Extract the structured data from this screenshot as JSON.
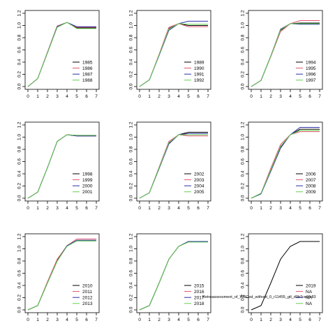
{
  "figure": {
    "overlay_text": "Retroassessment_of_WBCod_without_0_r11455_gtl_d0b7ce1fb83"
  },
  "series_colors": [
    "#000000",
    "#df536b",
    "#2e2ea8",
    "#61d04f"
  ],
  "chart_data": [
    {
      "type": "line",
      "x": [
        0,
        1,
        2,
        3,
        4,
        5,
        6,
        7
      ],
      "xlim": [
        0,
        7
      ],
      "ylim": [
        0,
        1.2
      ],
      "xticks": [
        "0",
        "1",
        "2",
        "3",
        "4",
        "5",
        "6",
        "7"
      ],
      "yticks": [
        "0.0",
        "0.2",
        "0.4",
        "0.6",
        "0.8",
        "1.0",
        "1.2"
      ],
      "grid": false,
      "legend_position": "bottom-right",
      "series": [
        {
          "name": "1985",
          "values": [
            0,
            0.13,
            0.56,
            0.99,
            1.05,
            0.96,
            0.96,
            0.96
          ]
        },
        {
          "name": "1986",
          "values": [
            0,
            0.13,
            0.56,
            0.99,
            1.05,
            0.97,
            0.97,
            0.97
          ]
        },
        {
          "name": "1987",
          "values": [
            0,
            0.13,
            0.55,
            0.98,
            1.05,
            0.98,
            0.98,
            0.98
          ]
        },
        {
          "name": "1988",
          "values": [
            0,
            0.13,
            0.55,
            0.97,
            1.05,
            0.95,
            0.95,
            0.95
          ]
        }
      ]
    },
    {
      "type": "line",
      "x": [
        0,
        1,
        2,
        3,
        4,
        5,
        6,
        7
      ],
      "xlim": [
        0,
        7
      ],
      "ylim": [
        0,
        1.2
      ],
      "xticks": [
        "0",
        "1",
        "2",
        "3",
        "4",
        "5",
        "6",
        "7"
      ],
      "yticks": [
        "0.0",
        "0.2",
        "0.4",
        "0.6",
        "0.8",
        "1.0",
        "1.2"
      ],
      "grid": false,
      "legend_position": "bottom-right",
      "series": [
        {
          "name": "1989",
          "values": [
            0,
            0.11,
            0.52,
            0.95,
            1.03,
            1.0,
            1.0,
            1.0
          ]
        },
        {
          "name": "1990",
          "values": [
            0,
            0.11,
            0.53,
            0.97,
            1.03,
            0.98,
            0.98,
            0.98
          ]
        },
        {
          "name": "1991",
          "values": [
            0,
            0.11,
            0.51,
            0.92,
            1.03,
            1.07,
            1.07,
            1.07
          ]
        },
        {
          "name": "1992",
          "values": [
            0,
            0.11,
            0.52,
            0.94,
            1.03,
            1.02,
            1.02,
            1.02
          ]
        }
      ]
    },
    {
      "type": "line",
      "x": [
        0,
        1,
        2,
        3,
        4,
        5,
        6,
        7
      ],
      "xlim": [
        0,
        7
      ],
      "ylim": [
        0,
        1.2
      ],
      "xticks": [
        "0",
        "1",
        "2",
        "3",
        "4",
        "5",
        "6",
        "7"
      ],
      "yticks": [
        "0.0",
        "0.2",
        "0.4",
        "0.6",
        "0.8",
        "1.0",
        "1.2"
      ],
      "grid": false,
      "legend_position": "bottom-right",
      "series": [
        {
          "name": "1994",
          "values": [
            0,
            0.1,
            0.5,
            0.92,
            1.03,
            1.04,
            1.04,
            1.04
          ]
        },
        {
          "name": "1995",
          "values": [
            0,
            0.1,
            0.49,
            0.9,
            1.03,
            1.08,
            1.08,
            1.08
          ]
        },
        {
          "name": "1996",
          "values": [
            0,
            0.1,
            0.5,
            0.94,
            1.03,
            1.02,
            1.02,
            1.02
          ]
        },
        {
          "name": "1997",
          "values": [
            0,
            0.1,
            0.5,
            0.93,
            1.03,
            1.03,
            1.03,
            1.03
          ]
        }
      ]
    },
    {
      "type": "line",
      "x": [
        0,
        1,
        2,
        3,
        4,
        5,
        6,
        7
      ],
      "xlim": [
        0,
        7
      ],
      "ylim": [
        0,
        1.2
      ],
      "xticks": [
        "0",
        "1",
        "2",
        "3",
        "4",
        "5",
        "6",
        "7"
      ],
      "yticks": [
        "0.0",
        "0.2",
        "0.4",
        "0.6",
        "0.8",
        "1.0",
        "1.2"
      ],
      "grid": false,
      "legend_position": "bottom-right",
      "series": [
        {
          "name": "1998",
          "values": [
            0,
            0.1,
            0.5,
            0.93,
            1.04,
            1.02,
            1.02,
            1.02
          ]
        },
        {
          "name": "1999",
          "values": [
            0,
            0.1,
            0.5,
            0.93,
            1.04,
            1.03,
            1.03,
            1.03
          ]
        },
        {
          "name": "2000",
          "values": [
            0,
            0.1,
            0.5,
            0.93,
            1.04,
            1.02,
            1.02,
            1.02
          ]
        },
        {
          "name": "2001",
          "values": [
            0,
            0.1,
            0.5,
            0.93,
            1.04,
            1.03,
            1.03,
            1.03
          ]
        }
      ]
    },
    {
      "type": "line",
      "x": [
        0,
        1,
        2,
        3,
        4,
        5,
        6,
        7
      ],
      "xlim": [
        0,
        7
      ],
      "ylim": [
        0,
        1.2
      ],
      "xticks": [
        "0",
        "1",
        "2",
        "3",
        "4",
        "5",
        "6",
        "7"
      ],
      "yticks": [
        "0.0",
        "0.2",
        "0.4",
        "0.6",
        "0.8",
        "1.0",
        "1.2"
      ],
      "grid": false,
      "legend_position": "bottom-right",
      "series": [
        {
          "name": "2002",
          "values": [
            0,
            0.09,
            0.49,
            0.9,
            1.04,
            1.08,
            1.08,
            1.08
          ]
        },
        {
          "name": "2003",
          "values": [
            0,
            0.09,
            0.51,
            0.93,
            1.04,
            1.02,
            1.02,
            1.02
          ]
        },
        {
          "name": "2004",
          "values": [
            0,
            0.09,
            0.49,
            0.89,
            1.04,
            1.06,
            1.06,
            1.06
          ]
        },
        {
          "name": "2005",
          "values": [
            0,
            0.09,
            0.5,
            0.91,
            1.04,
            1.04,
            1.04,
            1.04
          ]
        }
      ]
    },
    {
      "type": "line",
      "x": [
        0,
        1,
        2,
        3,
        4,
        5,
        6,
        7
      ],
      "xlim": [
        0,
        7
      ],
      "ylim": [
        0,
        1.2
      ],
      "xticks": [
        "0",
        "1",
        "2",
        "3",
        "4",
        "5",
        "6",
        "7"
      ],
      "yticks": [
        "0.0",
        "0.2",
        "0.4",
        "0.6",
        "0.8",
        "1.0",
        "1.2"
      ],
      "grid": false,
      "legend_position": "bottom-right",
      "series": [
        {
          "name": "2006",
          "values": [
            0,
            0.08,
            0.46,
            0.84,
            1.04,
            1.13,
            1.13,
            1.13
          ]
        },
        {
          "name": "2007",
          "values": [
            0,
            0.08,
            0.49,
            0.88,
            1.04,
            1.09,
            1.09,
            1.09
          ]
        },
        {
          "name": "2008",
          "values": [
            0,
            0.07,
            0.44,
            0.82,
            1.04,
            1.16,
            1.16,
            1.16
          ]
        },
        {
          "name": "2009",
          "values": [
            0,
            0.08,
            0.46,
            0.85,
            1.04,
            1.11,
            1.11,
            1.11
          ]
        }
      ]
    },
    {
      "type": "line",
      "x": [
        0,
        1,
        2,
        3,
        4,
        5,
        6,
        7
      ],
      "xlim": [
        0,
        7
      ],
      "ylim": [
        0,
        1.2
      ],
      "xticks": [
        "0",
        "1",
        "2",
        "3",
        "4",
        "5",
        "6",
        "7"
      ],
      "yticks": [
        "0.0",
        "0.2",
        "0.4",
        "0.6",
        "0.8",
        "1.0",
        "1.2"
      ],
      "grid": false,
      "legend_position": "bottom-right",
      "series": [
        {
          "name": "2010",
          "values": [
            0,
            0.07,
            0.45,
            0.82,
            1.05,
            1.13,
            1.13,
            1.13
          ]
        },
        {
          "name": "2011",
          "values": [
            0,
            0.07,
            0.46,
            0.83,
            1.05,
            1.16,
            1.16,
            1.16
          ]
        },
        {
          "name": "2012",
          "values": [
            0,
            0.07,
            0.44,
            0.8,
            1.05,
            1.14,
            1.14,
            1.14
          ]
        },
        {
          "name": "2013",
          "values": [
            0,
            0.07,
            0.44,
            0.8,
            1.04,
            1.13,
            1.13,
            1.13
          ]
        }
      ]
    },
    {
      "type": "line",
      "x": [
        0,
        1,
        2,
        3,
        4,
        5,
        6,
        7
      ],
      "xlim": [
        0,
        7
      ],
      "ylim": [
        0,
        1.2
      ],
      "xticks": [
        "0",
        "1",
        "2",
        "3",
        "4",
        "5",
        "6",
        "7"
      ],
      "yticks": [
        "0.0",
        "0.2",
        "0.4",
        "0.6",
        "0.8",
        "1.0",
        "1.2"
      ],
      "grid": false,
      "legend_position": "bottom-right",
      "series": [
        {
          "name": "2015",
          "values": [
            0,
            0.07,
            0.44,
            0.83,
            1.04,
            1.12,
            1.12,
            1.12
          ]
        },
        {
          "name": "2016",
          "values": [
            0,
            0.07,
            0.44,
            0.83,
            1.04,
            1.12,
            1.12,
            1.12
          ]
        },
        {
          "name": "2017",
          "values": [
            0,
            0.07,
            0.44,
            0.83,
            1.04,
            1.12,
            1.12,
            1.12
          ]
        },
        {
          "name": "2018",
          "values": [
            0,
            0.07,
            0.44,
            0.83,
            1.04,
            1.11,
            1.11,
            1.11
          ]
        }
      ]
    },
    {
      "type": "line",
      "x": [
        0,
        1,
        2,
        3,
        4,
        5,
        6,
        7
      ],
      "xlim": [
        0,
        7
      ],
      "ylim": [
        0,
        1.2
      ],
      "xticks": [
        "0",
        "1",
        "2",
        "3",
        "4",
        "5",
        "6",
        "7"
      ],
      "yticks": [
        "0.0",
        "0.2",
        "0.4",
        "0.6",
        "0.8",
        "1.0",
        "1.2"
      ],
      "grid": false,
      "legend_position": "bottom-right",
      "series": [
        {
          "name": "2019",
          "values": [
            0,
            0.07,
            0.44,
            0.83,
            1.04,
            1.12,
            1.12,
            1.12
          ]
        },
        {
          "name": "NA",
          "values": null
        },
        {
          "name": "NA",
          "values": null
        },
        {
          "name": "NA",
          "values": null
        }
      ]
    }
  ]
}
